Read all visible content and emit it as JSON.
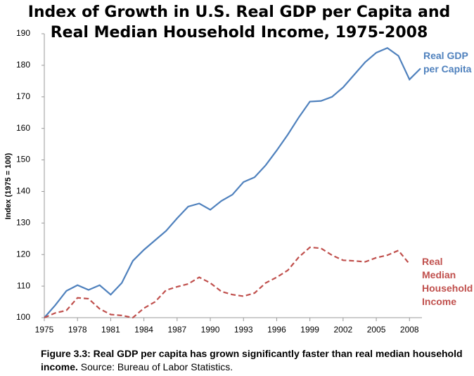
{
  "chart_data": {
    "type": "line",
    "title": [
      "Index of Growth in U.S. Real GDP per Capita and",
      "Real Median Household Income, 1975-2008"
    ],
    "y_label": "Index (1975 = 100)",
    "x": [
      1975,
      1976,
      1977,
      1978,
      1979,
      1980,
      1981,
      1982,
      1983,
      1984,
      1985,
      1986,
      1987,
      1988,
      1989,
      1990,
      1991,
      1992,
      1993,
      1994,
      1995,
      1996,
      1997,
      1998,
      1999,
      2000,
      2001,
      2002,
      2003,
      2004,
      2005,
      2006,
      2007,
      2008,
      2009
    ],
    "series": [
      {
        "name": "Real GDP per Capita",
        "color": "#4f81bd",
        "dash": false,
        "values": [
          100,
          104,
          108.5,
          110.3,
          108.8,
          110.3,
          107.3,
          111,
          118,
          121.5,
          124.5,
          127.5,
          131.5,
          135.2,
          136.2,
          134.2,
          137,
          139,
          143,
          144.5,
          148.3,
          153,
          158,
          163.5,
          168.5,
          168.7,
          170,
          173,
          177,
          181,
          184,
          185.5,
          183,
          175.5,
          179
        ]
      },
      {
        "name": "Real Median Household Income",
        "color": "#c0504d",
        "dash": true,
        "values": [
          100,
          101.5,
          102.3,
          106.3,
          106,
          102.8,
          101,
          100.7,
          100,
          103,
          105,
          108.7,
          109.8,
          110.7,
          112.8,
          111,
          108.3,
          107.3,
          106.8,
          107.8,
          111,
          112.8,
          115,
          119.2,
          122.3,
          122,
          119.8,
          118.2,
          118,
          117.7,
          119,
          119.8,
          121.3,
          117,
          null
        ]
      }
    ],
    "xlim": [
      1975,
      2009
    ],
    "xticks": [
      1975,
      1978,
      1981,
      1984,
      1987,
      1990,
      1993,
      1996,
      1999,
      2002,
      2005,
      2008
    ],
    "ylim": [
      100,
      190
    ],
    "yticks": [
      100,
      110,
      120,
      130,
      140,
      150,
      160,
      170,
      180,
      190
    ],
    "grid": false,
    "caption": {
      "bold": "Figure 3.3: Real GDP per capita has grown significantly faster than real median household income.",
      "normal": "Source: Bureau of Labor Statistics."
    }
  }
}
